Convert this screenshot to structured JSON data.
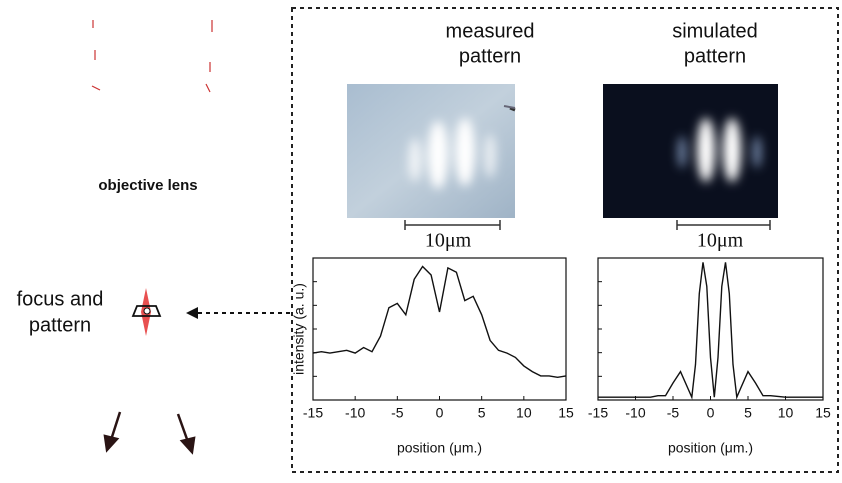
{
  "figure": {
    "left_labels": {
      "lens": "objective lens",
      "focus": [
        "focus and",
        "pattern"
      ]
    },
    "scale_bars": [
      "10μm",
      "10μm"
    ]
  },
  "chart_data": [
    {
      "type": "line",
      "title": [
        "measured",
        "pattern"
      ],
      "xlabel": "position (μm.)",
      "ylabel": "intensity (a. u.)",
      "x": [
        -15,
        -14,
        -13,
        -12,
        -11,
        -10,
        -9,
        -8,
        -7,
        -6,
        -5,
        -4,
        -3,
        -2,
        -1,
        0,
        1,
        2,
        3,
        4,
        5,
        6,
        7,
        8,
        9,
        10,
        11,
        12,
        13,
        14,
        15
      ],
      "values": [
        0.33,
        0.34,
        0.33,
        0.34,
        0.35,
        0.33,
        0.37,
        0.34,
        0.45,
        0.65,
        0.68,
        0.6,
        0.85,
        0.94,
        0.88,
        0.62,
        0.93,
        0.9,
        0.7,
        0.73,
        0.6,
        0.42,
        0.35,
        0.33,
        0.3,
        0.24,
        0.2,
        0.17,
        0.17,
        0.16,
        0.17
      ],
      "color": "#111111",
      "xlim": [
        -15,
        15
      ],
      "ylim": [
        0,
        1
      ],
      "xticks": [
        -15,
        -10,
        -5,
        0,
        5,
        10,
        15
      ]
    },
    {
      "type": "line",
      "title": [
        "simulated",
        "pattern"
      ],
      "xlabel": "position (μm.)",
      "x": [
        -15,
        -10,
        -8,
        -7,
        -6,
        -5,
        -4,
        -3,
        -2.5,
        -2,
        -1.5,
        -1,
        -0.5,
        0,
        0.5,
        1,
        1.5,
        2,
        2.5,
        3,
        3.5,
        4,
        5,
        6,
        7,
        8,
        10,
        15
      ],
      "values": [
        0.02,
        0.02,
        0.02,
        0.03,
        0.03,
        0.12,
        0.2,
        0.08,
        0.02,
        0.25,
        0.75,
        0.97,
        0.8,
        0.3,
        0.02,
        0.3,
        0.8,
        0.97,
        0.75,
        0.25,
        0.02,
        0.08,
        0.2,
        0.12,
        0.03,
        0.03,
        0.02,
        0.02
      ],
      "color": "#111111",
      "xlim": [
        -15,
        15
      ],
      "ylim": [
        0,
        1
      ],
      "xticks": [
        -15,
        -10,
        -5,
        0,
        5,
        10,
        15
      ]
    }
  ]
}
